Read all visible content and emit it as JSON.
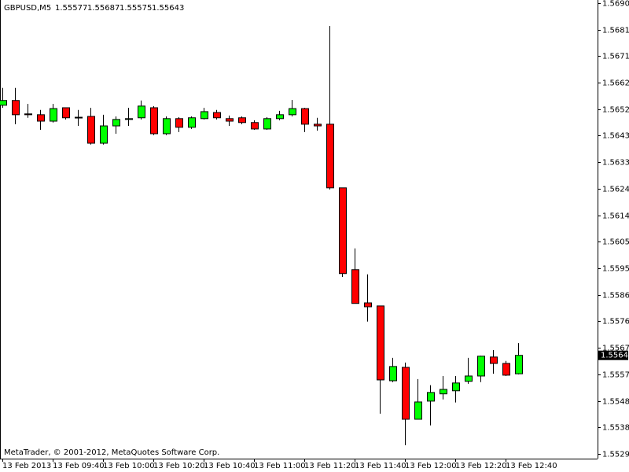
{
  "chart_data": {
    "type": "candlestick",
    "title": "GBPUSD,M5",
    "header_values": [
      1.55577,
      1.55687,
      1.55575,
      1.55643
    ],
    "footer": "MetaTrader, © 2001-2012, MetaQuotes Software Corp.",
    "current_price": 1.55643,
    "up_color": "#00ff00",
    "down_color": "#ff0000",
    "categories": [
      "13 Feb 2013",
      null,
      null,
      null,
      "13 Feb 09:40",
      null,
      null,
      null,
      "13 Feb 10:00",
      null,
      null,
      null,
      "13 Feb 10:20",
      null,
      null,
      null,
      "13 Feb 10:40",
      null,
      null,
      null,
      "13 Feb 11:00",
      null,
      null,
      null,
      "13 Feb 11:20",
      null,
      null,
      null,
      "13 Feb 11:40",
      null,
      null,
      null,
      "13 Feb 12:00",
      null,
      null,
      null,
      "13 Feb 12:20",
      null,
      null,
      null,
      "13 Feb 12:40",
      null
    ],
    "open": [
      1.56539,
      1.56556,
      1.56508,
      1.56505,
      1.56482,
      1.5653,
      1.56496,
      1.56499,
      1.56403,
      1.56465,
      1.56488,
      1.56494,
      1.5653,
      1.56437,
      1.56491,
      1.5646,
      1.56491,
      1.56513,
      1.56491,
      1.56494,
      1.56477,
      1.56454,
      1.56491,
      1.56505,
      1.56527,
      1.56471,
      1.56471,
      1.56243,
      1.5595,
      1.55831,
      1.5582,
      1.55552,
      1.556,
      1.55414,
      1.55479,
      1.55505,
      1.55516,
      1.5555,
      1.55569,
      1.55637,
      1.55614,
      1.55577
    ],
    "high": [
      1.56601,
      1.56601,
      1.56544,
      1.56522,
      1.56544,
      1.5653,
      1.56522,
      1.5653,
      1.56505,
      1.56499,
      1.5653,
      1.56556,
      1.56536,
      1.56499,
      1.56496,
      1.56499,
      1.5653,
      1.56522,
      1.56502,
      1.56499,
      1.56485,
      1.56496,
      1.56519,
      1.56558,
      1.5653,
      1.56494,
      1.56823,
      1.56243,
      1.56026,
      1.55933,
      1.5582,
      1.55634,
      1.55617,
      1.55558,
      1.55536,
      1.55569,
      1.55569,
      1.55634,
      1.55642,
      1.55662,
      1.55623,
      1.55687
    ],
    "low": [
      1.5653,
      1.56471,
      1.56494,
      1.56451,
      1.56477,
      1.56488,
      1.56465,
      1.56398,
      1.56398,
      1.56437,
      1.56465,
      1.56488,
      1.56432,
      1.56432,
      1.56443,
      1.56454,
      1.56488,
      1.56488,
      1.56465,
      1.56471,
      1.56451,
      1.56451,
      1.56485,
      1.56499,
      1.56443,
      1.56448,
      1.56237,
      1.55924,
      1.55829,
      1.55764,
      1.55434,
      1.55547,
      1.55321,
      1.55414,
      1.55392,
      1.55485,
      1.55474,
      1.55541,
      1.55547,
      1.55577,
      1.55569,
      1.55575
    ],
    "close": [
      1.56556,
      1.56505,
      1.56505,
      1.56482,
      1.56527,
      1.56494,
      1.56494,
      1.56403,
      1.56465,
      1.56488,
      1.56491,
      1.56536,
      1.56437,
      1.56491,
      1.5646,
      1.56494,
      1.56516,
      1.56494,
      1.56482,
      1.56477,
      1.56454,
      1.56491,
      1.56505,
      1.56527,
      1.56471,
      1.56465,
      1.56243,
      1.55936,
      1.55829,
      1.55817,
      1.55555,
      1.55603,
      1.55414,
      1.55476,
      1.5551,
      1.55521,
      1.55544,
      1.55569,
      1.5564,
      1.55614,
      1.55572,
      1.55643
    ],
    "ylim": [
      1.55273,
      1.56916
    ],
    "yticks": [
      1.56905,
      {
        "value": 1.5681,
        "label": "1.56810"
      },
      1.56715,
      {
        "value": 1.5662,
        "label": "1.56620"
      },
      1.56525,
      {
        "value": 1.5643,
        "label": "1.56430"
      },
      1.56335,
      {
        "value": 1.5624,
        "label": "1.56240"
      },
      1.56145,
      {
        "value": 1.5605,
        "label": "1.56050"
      },
      1.55955,
      {
        "value": 1.5586,
        "label": "1.55860"
      },
      1.55765,
      {
        "value": 1.5567,
        "label": "1.55670"
      },
      1.55575,
      {
        "value": 1.5548,
        "label": "1.55480"
      },
      1.55385,
      {
        "value": 1.5529,
        "label": "1.55290"
      }
    ]
  }
}
